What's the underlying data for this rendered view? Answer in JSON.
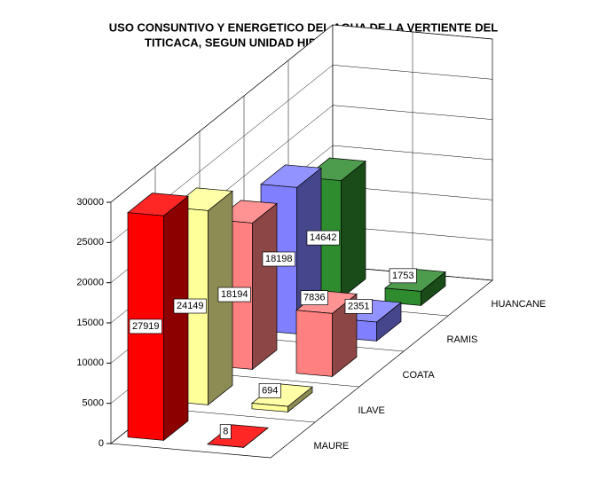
{
  "chart_data": {
    "type": "bar3d",
    "title": [
      "USO CONSUNTIVO Y ENERGETICO DEL AGUA DE LA VERTIENTE DEL",
      "TITICACA, SEGUN UNIDAD HIDROGRAFICA DE ANALISIS"
    ],
    "categories": [
      "MAURE",
      "ILAVE",
      "COATA",
      "RAMIS",
      "HUANCANE"
    ],
    "colors": [
      "#ff0000",
      "#ffff99",
      "#ff8080",
      "#8080ff",
      "#2e8b2e"
    ],
    "series": [
      {
        "values": [
          27919,
          24149,
          18194,
          18198,
          14642
        ]
      },
      {
        "values": [
          8,
          694,
          7836,
          2351,
          1753
        ]
      }
    ],
    "ylim": [
      0,
      30000
    ],
    "yticks": [
      0,
      5000,
      10000,
      15000,
      20000,
      25000,
      30000
    ],
    "grid": true
  }
}
